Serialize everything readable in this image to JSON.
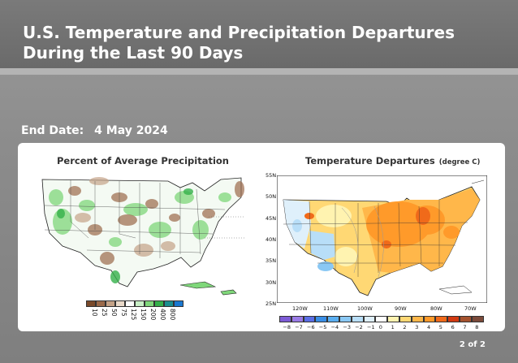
{
  "header": {
    "title": "U.S. Temperature and Precipitation Departures During the Last 90 Days"
  },
  "end_date": {
    "label": "End Date:",
    "value": "4 May 2024"
  },
  "precip_map": {
    "title": "Percent of Average Precipitation",
    "legend": {
      "labels": [
        "10",
        "25",
        "50",
        "75",
        "125",
        "150",
        "200",
        "400",
        "800"
      ],
      "colors": [
        "#7a4a2a",
        "#9b6a4a",
        "#c4a287",
        "#e9d9c9",
        "#ffffff",
        "#c8efc6",
        "#7fd77a",
        "#35b04a",
        "#1a8f8f",
        "#1a78d0"
      ]
    }
  },
  "temp_map": {
    "title": "Temperature Departures",
    "subtitle": "(degree C)",
    "lat_labels": [
      "55N",
      "50N",
      "45N",
      "40N",
      "35N",
      "30N",
      "25N"
    ],
    "lon_labels": [
      "120W",
      "110W",
      "100W",
      "90W",
      "80W",
      "70W"
    ],
    "legend": {
      "labels": [
        "−8",
        "−7",
        "−6",
        "−5",
        "−4",
        "−3",
        "−2",
        "−1",
        "0",
        "1",
        "2",
        "3",
        "4",
        "5",
        "6",
        "7",
        "8"
      ],
      "colors": [
        "#7d5bd6",
        "#9a7be6",
        "#5a6ee6",
        "#3a8ee6",
        "#5aaef0",
        "#8ac8f4",
        "#b8def8",
        "#dff0fb",
        "#ffffff",
        "#fff3b0",
        "#ffd874",
        "#ffb74a",
        "#ff9a2a",
        "#f06a1a",
        "#d23a12",
        "#a5522e",
        "#7b4a3a"
      ]
    }
  },
  "footer": {
    "page": "2 of 2"
  }
}
